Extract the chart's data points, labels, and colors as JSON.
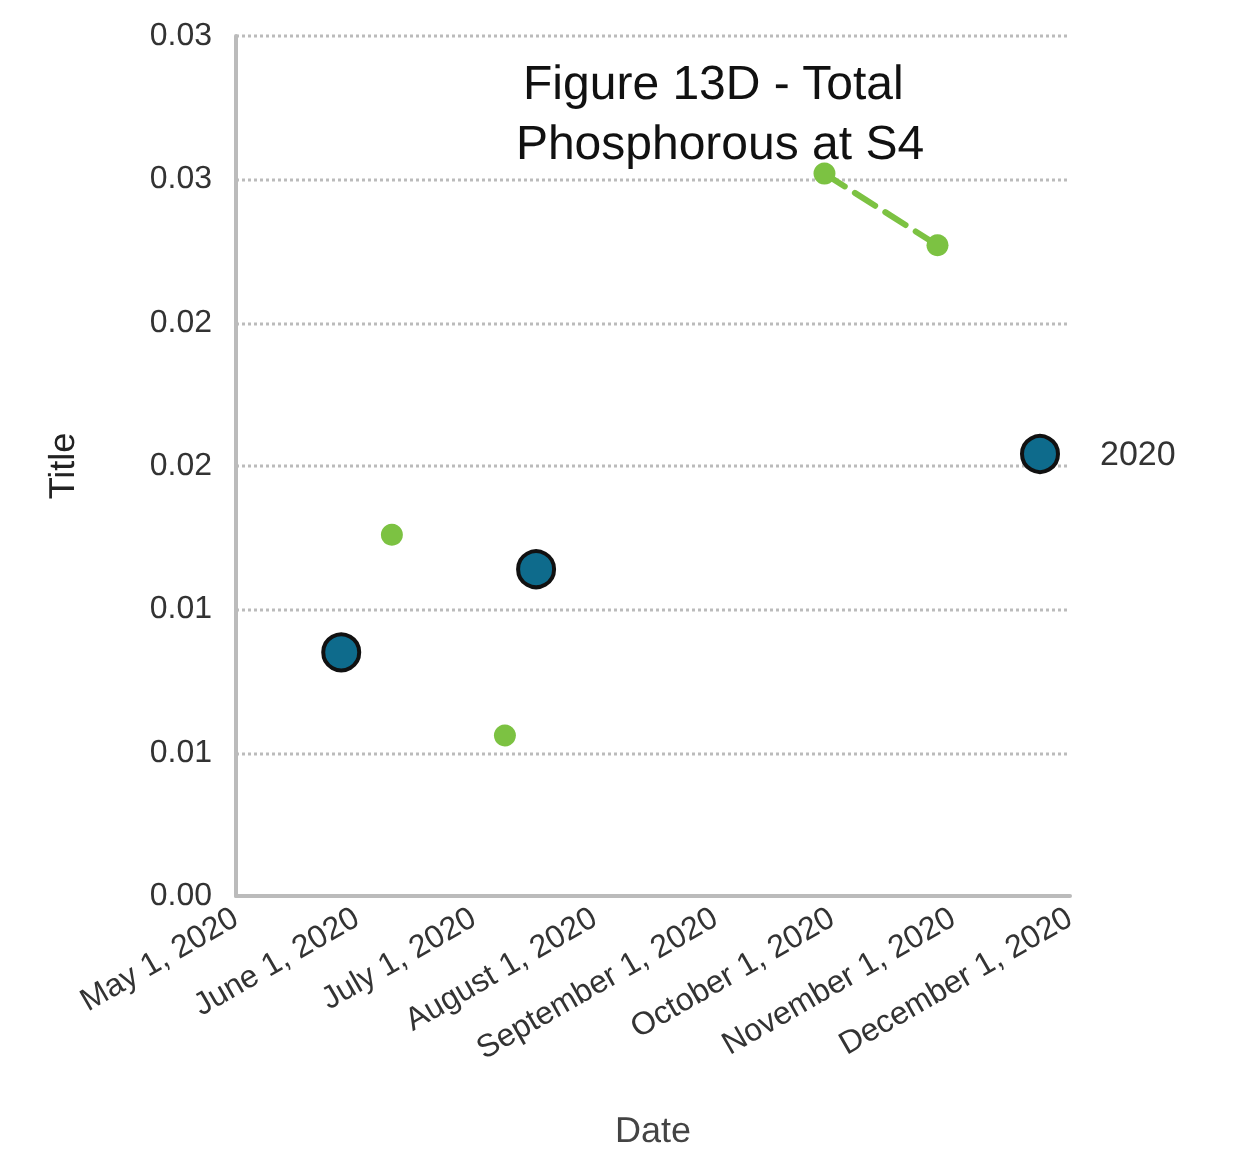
{
  "chart_data": {
    "type": "line",
    "title": "Figure 13D - Total Phosphorous at S4",
    "xlabel": "Date",
    "ylabel": "Title",
    "series": [
      {
        "name": "2020",
        "type": "scatter",
        "color": "#0e6b8c",
        "marker": "circle",
        "x": [
          "2020-05-28",
          "2020-07-17"
        ],
        "values": [
          0.0085,
          0.0114
        ]
      },
      {
        "type": "scatter",
        "color": "#7cc242",
        "marker": "circle",
        "x": [
          "2020-06-10",
          "2020-07-09"
        ],
        "values": [
          0.0126,
          0.0056
        ]
      },
      {
        "color": "#7cc242",
        "marker": "circle",
        "line_style": "dashed",
        "x": [
          "2020-09-29",
          "2020-10-28"
        ],
        "values": [
          0.0252,
          0.0227
        ]
      }
    ],
    "xlim": [
      "2020-05-01",
      "2020-12-01"
    ],
    "xticks": [
      {
        "value": "2020-05-01",
        "label": "May 1, 2020"
      },
      {
        "value": "2020-06-01",
        "label": "June 1, 2020"
      },
      {
        "value": "2020-07-01",
        "label": "July 1, 2020"
      },
      {
        "value": "2020-08-01",
        "label": "August 1, 2020"
      },
      {
        "value": "2020-09-01",
        "label": "September 1, 2020"
      },
      {
        "value": "2020-10-01",
        "label": "October 1, 2020"
      },
      {
        "value": "2020-11-01",
        "label": "November 1, 2020"
      },
      {
        "value": "2020-12-01",
        "label": "December 1, 2020"
      }
    ],
    "ylim": [
      0,
      0.03
    ],
    "yticks": [
      {
        "value": 0,
        "label": "0.00"
      },
      {
        "value": 0.005,
        "label": "0.01"
      },
      {
        "value": 0.01,
        "label": "0.01"
      },
      {
        "value": 0.015,
        "label": "0.02"
      },
      {
        "value": 0.02,
        "label": "0.02"
      },
      {
        "value": 0.025,
        "label": "0.03"
      },
      {
        "value": 0.03,
        "label": "0.03"
      }
    ],
    "grid": "y",
    "legend": "right"
  }
}
